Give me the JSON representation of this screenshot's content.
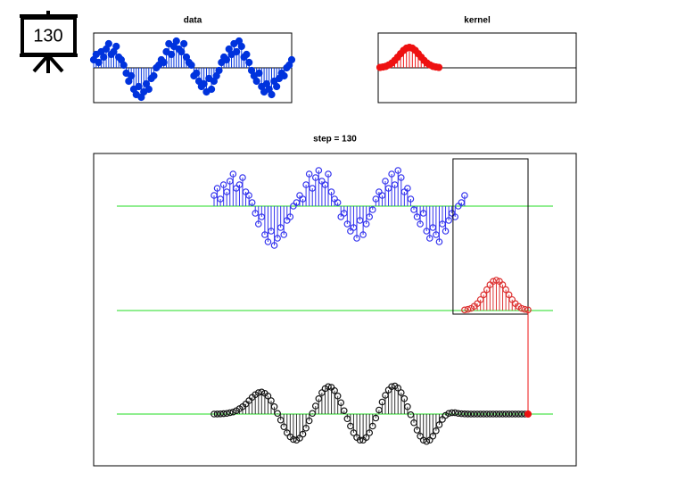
{
  "icon_label": "130",
  "chart_data": [
    {
      "type": "stem",
      "title": "data",
      "color": "#0033dd",
      "filled": true,
      "ylim": [
        -1.3,
        1.3
      ],
      "values": [
        0.3,
        0.5,
        0.2,
        0.6,
        0.4,
        0.7,
        0.9,
        0.5,
        0.6,
        0.8,
        0.4,
        0.3,
        0.1,
        -0.2,
        -0.5,
        -0.3,
        -0.8,
        -1.0,
        -0.7,
        -1.1,
        -0.9,
        -0.6,
        -0.8,
        -0.4,
        -0.3,
        0.0,
        0.1,
        0.3,
        0.2,
        0.6,
        0.9,
        0.5,
        0.8,
        1.0,
        0.7,
        0.6,
        0.9,
        0.4,
        0.2,
        0.1,
        -0.3,
        -0.2,
        -0.5,
        -0.7,
        -0.6,
        -0.9,
        -0.4,
        -0.8,
        -0.5,
        -0.3,
        -0.1,
        0.2,
        0.4,
        0.3,
        0.7,
        0.5,
        0.9,
        0.6,
        1.0,
        0.8,
        0.4,
        0.5,
        0.2,
        -0.1,
        -0.3,
        -0.5,
        -0.2,
        -0.7,
        -0.9,
        -0.6,
        -0.8,
        -1.0,
        -0.5,
        -0.7,
        -0.4,
        -0.2,
        -0.3,
        0.0,
        0.1,
        0.3
      ]
    },
    {
      "type": "stem",
      "title": "kernel",
      "color": "#ee1111",
      "filled": true,
      "ylim": [
        -1.7,
        1.7
      ],
      "values": [
        0.02,
        0.04,
        0.07,
        0.14,
        0.23,
        0.36,
        0.52,
        0.69,
        0.85,
        0.96,
        1,
        0.96,
        0.85,
        0.69,
        0.52,
        0.36,
        0.23,
        0.14,
        0.07,
        0.04,
        0.02
      ]
    },
    {
      "type": "convolution",
      "title": "step = 130",
      "baseline_color": "#22dd22",
      "data_color": "#3333ee",
      "kernel_color": "#dd3333",
      "output_color": "#111111",
      "output": [
        0,
        0.01,
        0.03,
        0.06,
        0.1,
        0.2,
        0.3,
        0.5,
        0.8,
        1.1,
        1.5,
        2.0,
        2.5,
        2.9,
        3.2,
        3.3,
        3.1,
        2.7,
        2.0,
        1.1,
        0.1,
        -0.9,
        -1.9,
        -2.8,
        -3.4,
        -3.8,
        -3.9,
        -3.6,
        -3.0,
        -2.1,
        -1.0,
        0.1,
        1.2,
        2.3,
        3.2,
        3.8,
        4.1,
        4.0,
        3.5,
        2.7,
        1.7,
        0.5,
        -0.7,
        -1.8,
        -2.8,
        -3.5,
        -3.9,
        -3.9,
        -3.5,
        -2.8,
        -1.8,
        -0.6,
        0.6,
        1.8,
        2.8,
        3.6,
        4.1,
        4.2,
        3.9,
        3.2,
        2.3,
        1.1,
        -0.1,
        -1.3,
        -2.4,
        -3.3,
        -3.9,
        -4.1,
        -3.9,
        -3.3,
        -2.5,
        -1.6,
        -0.8,
        -0.2,
        0.1,
        0.2,
        0.2,
        0.1,
        0.05,
        0.02,
        0.01,
        0,
        0,
        0,
        0,
        0,
        0,
        0,
        0,
        0,
        0,
        0,
        0,
        0,
        0,
        0,
        0,
        0,
        0,
        0
      ]
    }
  ]
}
